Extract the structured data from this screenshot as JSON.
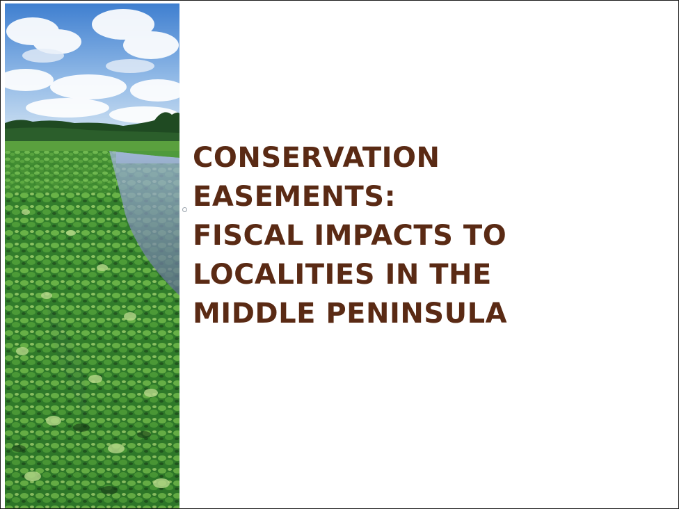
{
  "slide": {
    "title_lines": [
      "CONSERVATION",
      "EASEMENTS:",
      "FISCAL IMPACTS TO",
      "LOCALITIES IN THE",
      "MIDDLE PENINSULA"
    ],
    "title_color": "#5a2a14",
    "photo_icon": "marsh-landscape-photo"
  }
}
